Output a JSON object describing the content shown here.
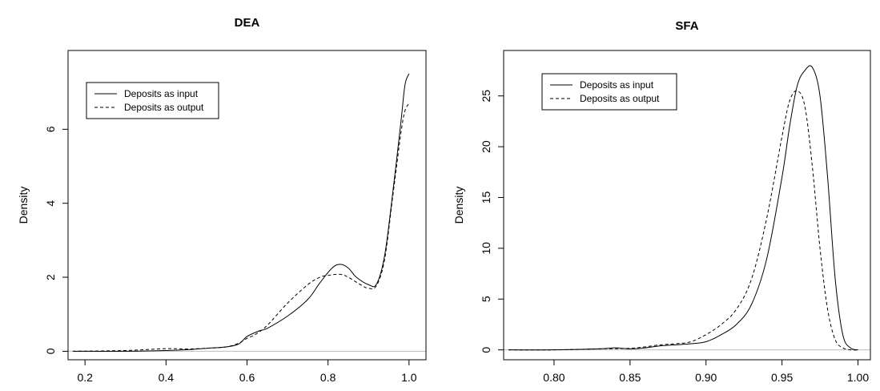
{
  "chart_data": [
    {
      "type": "line",
      "title": "DEA",
      "xlabel": "",
      "ylabel": "Density",
      "xlim": [
        0.17,
        1.03
      ],
      "ylim": [
        -0.1,
        8.0
      ],
      "xticks": [
        0.2,
        0.4,
        0.6,
        0.8,
        1.0
      ],
      "xtick_labels": [
        "0.2",
        "0.4",
        "0.6",
        "0.8",
        "1.0"
      ],
      "yticks": [
        0,
        2,
        4,
        6
      ],
      "ytick_labels": [
        "0",
        "2",
        "4",
        "6"
      ],
      "legend_position": "top-left",
      "series": [
        {
          "name": "Deposits as input",
          "style": "solid",
          "x": [
            0.17,
            0.3,
            0.4,
            0.45,
            0.5,
            0.55,
            0.58,
            0.6,
            0.63,
            0.65,
            0.7,
            0.75,
            0.78,
            0.81,
            0.83,
            0.85,
            0.87,
            0.9,
            0.92,
            0.94,
            0.96,
            0.98,
            0.99,
            1.0
          ],
          "y": [
            0.0,
            0.0,
            0.02,
            0.04,
            0.08,
            0.12,
            0.2,
            0.4,
            0.55,
            0.62,
            0.95,
            1.4,
            1.85,
            2.25,
            2.35,
            2.25,
            2.0,
            1.8,
            1.82,
            2.6,
            4.3,
            6.2,
            7.2,
            7.5
          ]
        },
        {
          "name": "Deposits as output",
          "style": "dashed",
          "x": [
            0.17,
            0.3,
            0.4,
            0.45,
            0.5,
            0.55,
            0.58,
            0.6,
            0.62,
            0.65,
            0.7,
            0.75,
            0.78,
            0.8,
            0.83,
            0.85,
            0.88,
            0.9,
            0.92,
            0.94,
            0.96,
            0.98,
            0.99,
            1.0
          ],
          "y": [
            0.0,
            0.02,
            0.07,
            0.06,
            0.08,
            0.12,
            0.22,
            0.35,
            0.45,
            0.7,
            1.3,
            1.8,
            2.0,
            2.05,
            2.08,
            2.0,
            1.8,
            1.7,
            1.78,
            2.5,
            4.2,
            5.9,
            6.5,
            6.7
          ]
        }
      ]
    },
    {
      "type": "line",
      "title": "SFA",
      "xlabel": "",
      "ylabel": "Density",
      "xlim": [
        0.77,
        1.005
      ],
      "ylim": [
        -0.5,
        29.0
      ],
      "xticks": [
        0.8,
        0.85,
        0.9,
        0.95,
        1.0
      ],
      "xtick_labels": [
        "0.80",
        "0.85",
        "0.90",
        "0.95",
        "1.00"
      ],
      "yticks": [
        0,
        5,
        10,
        15,
        20,
        25
      ],
      "ytick_labels": [
        "0",
        "5",
        "10",
        "15",
        "20",
        "25"
      ],
      "legend_position": "top-left",
      "series": [
        {
          "name": "Deposits as input",
          "style": "solid",
          "x": [
            0.77,
            0.8,
            0.83,
            0.84,
            0.85,
            0.86,
            0.87,
            0.88,
            0.89,
            0.9,
            0.91,
            0.92,
            0.93,
            0.94,
            0.95,
            0.955,
            0.96,
            0.965,
            0.97,
            0.975,
            0.98,
            0.985,
            0.99,
            0.995,
            1.0
          ],
          "y": [
            0.0,
            0.0,
            0.1,
            0.2,
            0.1,
            0.2,
            0.4,
            0.5,
            0.6,
            0.8,
            1.5,
            2.5,
            4.5,
            9.0,
            17.0,
            22.0,
            26.0,
            27.5,
            27.8,
            25.0,
            17.0,
            7.0,
            1.5,
            0.2,
            0.0
          ]
        },
        {
          "name": "Deposits as output",
          "style": "dashed",
          "x": [
            0.77,
            0.8,
            0.83,
            0.85,
            0.86,
            0.87,
            0.88,
            0.89,
            0.9,
            0.91,
            0.92,
            0.93,
            0.94,
            0.95,
            0.955,
            0.96,
            0.965,
            0.97,
            0.975,
            0.98,
            0.985,
            0.99,
            0.995,
            1.0
          ],
          "y": [
            0.0,
            0.0,
            0.1,
            0.15,
            0.3,
            0.5,
            0.6,
            0.8,
            1.5,
            2.5,
            4.0,
            7.0,
            13.0,
            21.0,
            24.5,
            25.5,
            24.0,
            18.0,
            10.0,
            4.0,
            1.0,
            0.2,
            0.0,
            0.0
          ]
        }
      ]
    }
  ]
}
